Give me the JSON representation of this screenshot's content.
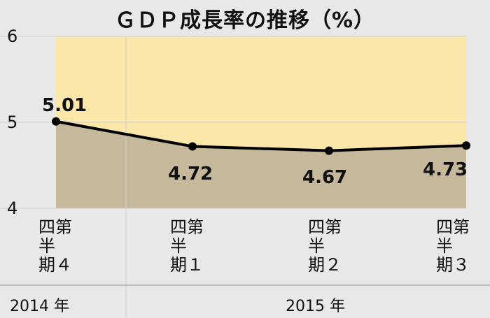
{
  "chart_data": {
    "type": "area",
    "title": "ＧＤＰ成長率の推移（%）",
    "categories": [
      "四第半期４",
      "四第半期１",
      "四第半期２",
      "四第半期３"
    ],
    "category_lines": [
      [
        "四第",
        "半",
        "期４"
      ],
      [
        "四第",
        "半",
        "期１"
      ],
      [
        "四第",
        "半",
        "期２"
      ],
      [
        "四第",
        "半",
        "期３"
      ]
    ],
    "values": [
      5.01,
      4.72,
      4.67,
      4.73
    ],
    "data_labels": [
      "5.01",
      "4.72",
      "4.67",
      "4.73"
    ],
    "year_groups": [
      "2014 年",
      "2015 年"
    ],
    "yticks": [
      "6",
      "5",
      "4"
    ],
    "ylim": [
      4,
      6
    ],
    "grid": true,
    "colors": {
      "upper_fill": "#fbe7a9",
      "lower_fill": "#c6b99b",
      "line": "#000000",
      "grid": "#cfcfcf",
      "background": "#e9e8e8"
    }
  }
}
